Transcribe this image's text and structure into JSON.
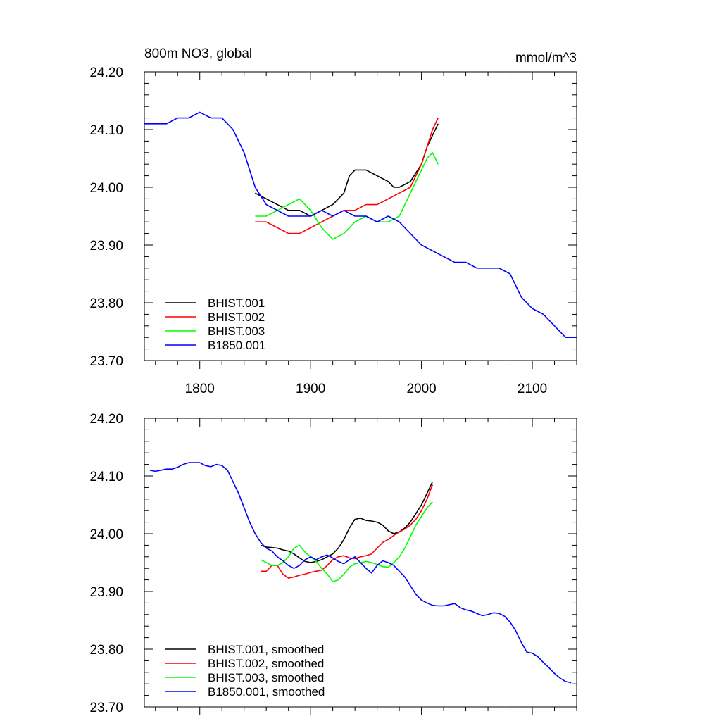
{
  "chart_data": [
    {
      "type": "line",
      "title": "800m NO3, global",
      "units": "mmol/m^3",
      "xlim": [
        1750,
        2140
      ],
      "ylim": [
        23.7,
        24.2
      ],
      "xticks": [
        1800,
        1900,
        2000,
        2100
      ],
      "xtick_labels": [
        "1800",
        "1900",
        "2000",
        "2100"
      ],
      "yticks": [
        23.7,
        23.8,
        23.9,
        24.0,
        24.1,
        24.2
      ],
      "ytick_labels": [
        "23.70",
        "23.80",
        "23.90",
        "24.00",
        "24.10",
        "24.20"
      ],
      "legend_position": "bottom-left",
      "grid": false,
      "series": [
        {
          "name": "BHIST.001",
          "color": "#000000",
          "x": [
            1850,
            1860,
            1870,
            1880,
            1890,
            1900,
            1910,
            1920,
            1930,
            1935,
            1940,
            1950,
            1960,
            1970,
            1975,
            1980,
            1990,
            2000,
            2005,
            2010,
            2015
          ],
          "y": [
            23.99,
            23.98,
            23.97,
            23.96,
            23.96,
            23.95,
            23.96,
            23.97,
            23.99,
            24.02,
            24.03,
            24.03,
            24.02,
            24.01,
            24.0,
            24.0,
            24.01,
            24.04,
            24.07,
            24.09,
            24.11
          ]
        },
        {
          "name": "BHIST.002",
          "color": "#ff0000",
          "x": [
            1850,
            1860,
            1870,
            1880,
            1890,
            1900,
            1910,
            1920,
            1930,
            1940,
            1950,
            1960,
            1970,
            1980,
            1990,
            2000,
            2005,
            2010,
            2015
          ],
          "y": [
            23.94,
            23.94,
            23.93,
            23.92,
            23.92,
            23.93,
            23.94,
            23.95,
            23.96,
            23.96,
            23.97,
            23.97,
            23.98,
            23.99,
            24.0,
            24.04,
            24.07,
            24.1,
            24.12
          ]
        },
        {
          "name": "BHIST.003",
          "color": "#00ff00",
          "x": [
            1850,
            1860,
            1870,
            1880,
            1890,
            1900,
            1910,
            1920,
            1930,
            1940,
            1950,
            1960,
            1970,
            1980,
            1990,
            2000,
            2005,
            2010,
            2015
          ],
          "y": [
            23.95,
            23.95,
            23.96,
            23.97,
            23.98,
            23.96,
            23.93,
            23.91,
            23.92,
            23.94,
            23.95,
            23.94,
            23.94,
            23.95,
            23.99,
            24.03,
            24.05,
            24.06,
            24.04
          ]
        },
        {
          "name": "B1850.001",
          "color": "#0000ff",
          "x": [
            1750,
            1760,
            1770,
            1780,
            1790,
            1800,
            1810,
            1820,
            1830,
            1840,
            1850,
            1860,
            1870,
            1880,
            1890,
            1900,
            1910,
            1920,
            1930,
            1940,
            1950,
            1960,
            1970,
            1980,
            1990,
            2000,
            2010,
            2020,
            2030,
            2040,
            2050,
            2060,
            2070,
            2080,
            2090,
            2100,
            2110,
            2120,
            2130,
            2140
          ],
          "y": [
            24.11,
            24.11,
            24.11,
            24.12,
            24.12,
            24.13,
            24.12,
            24.12,
            24.1,
            24.06,
            24.0,
            23.97,
            23.96,
            23.95,
            23.95,
            23.95,
            23.96,
            23.95,
            23.96,
            23.95,
            23.95,
            23.94,
            23.95,
            23.94,
            23.92,
            23.9,
            23.89,
            23.88,
            23.87,
            23.87,
            23.86,
            23.86,
            23.86,
            23.85,
            23.81,
            23.79,
            23.78,
            23.76,
            23.74,
            23.74
          ]
        }
      ]
    },
    {
      "type": "line",
      "xlim": [
        1750,
        2140
      ],
      "ylim": [
        23.7,
        24.2
      ],
      "xticks": [
        1800,
        1900,
        2000,
        2100
      ],
      "yticks": [
        23.7,
        23.8,
        23.9,
        24.0,
        24.1,
        24.2
      ],
      "ytick_labels": [
        "23.70",
        "23.80",
        "23.90",
        "24.00",
        "24.10",
        "24.20"
      ],
      "legend_position": "bottom-left",
      "grid": false,
      "series": [
        {
          "name": "BHIST.001, smoothed",
          "color": "#000000",
          "x": [
            1855,
            1860,
            1865,
            1870,
            1875,
            1880,
            1885,
            1890,
            1895,
            1900,
            1905,
            1910,
            1915,
            1920,
            1925,
            1930,
            1935,
            1940,
            1945,
            1950,
            1955,
            1960,
            1965,
            1970,
            1975,
            1980,
            1985,
            1990,
            1995,
            2000,
            2005,
            2010
          ],
          "y": [
            23.98,
            23.977,
            23.976,
            23.975,
            23.972,
            23.97,
            23.965,
            23.958,
            23.952,
            23.95,
            23.952,
            23.955,
            23.96,
            23.965,
            23.975,
            23.99,
            24.01,
            24.025,
            24.027,
            24.023,
            24.022,
            24.02,
            24.015,
            24.005,
            24.0,
            24.003,
            24.01,
            24.02,
            24.035,
            24.05,
            24.07,
            24.09
          ]
        },
        {
          "name": "BHIST.002, smoothed",
          "color": "#ff0000",
          "x": [
            1855,
            1860,
            1865,
            1870,
            1875,
            1880,
            1885,
            1890,
            1895,
            1900,
            1905,
            1910,
            1915,
            1920,
            1925,
            1930,
            1935,
            1940,
            1945,
            1950,
            1955,
            1960,
            1965,
            1970,
            1975,
            1980,
            1985,
            1990,
            1995,
            2000,
            2005,
            2010
          ],
          "y": [
            23.935,
            23.935,
            23.945,
            23.945,
            23.93,
            23.923,
            23.925,
            23.928,
            23.93,
            23.933,
            23.935,
            23.937,
            23.945,
            23.955,
            23.96,
            23.962,
            23.958,
            23.957,
            23.96,
            23.962,
            23.965,
            23.975,
            23.985,
            23.99,
            23.997,
            24.003,
            24.008,
            24.015,
            24.025,
            24.04,
            24.06,
            24.085
          ]
        },
        {
          "name": "BHIST.003, smoothed",
          "color": "#00ff00",
          "x": [
            1855,
            1860,
            1865,
            1870,
            1875,
            1880,
            1885,
            1890,
            1895,
            1900,
            1905,
            1910,
            1915,
            1920,
            1925,
            1930,
            1935,
            1940,
            1945,
            1950,
            1955,
            1960,
            1965,
            1970,
            1975,
            1980,
            1985,
            1990,
            1995,
            2000,
            2005,
            2010
          ],
          "y": [
            23.955,
            23.95,
            23.945,
            23.945,
            23.95,
            23.96,
            23.975,
            23.98,
            23.968,
            23.96,
            23.952,
            23.94,
            23.93,
            23.917,
            23.92,
            23.93,
            23.942,
            23.948,
            23.95,
            23.952,
            23.95,
            23.947,
            23.943,
            23.942,
            23.95,
            23.96,
            23.975,
            23.995,
            24.015,
            24.03,
            24.045,
            24.055
          ]
        },
        {
          "name": "B1850.001, smoothed",
          "color": "#0000ff",
          "x": [
            1755,
            1760,
            1765,
            1770,
            1775,
            1780,
            1785,
            1790,
            1795,
            1800,
            1805,
            1810,
            1815,
            1820,
            1825,
            1830,
            1835,
            1840,
            1845,
            1850,
            1855,
            1860,
            1865,
            1870,
            1875,
            1880,
            1885,
            1890,
            1895,
            1900,
            1905,
            1910,
            1915,
            1920,
            1925,
            1930,
            1935,
            1940,
            1945,
            1950,
            1955,
            1960,
            1965,
            1970,
            1975,
            1980,
            1985,
            1990,
            1995,
            2000,
            2005,
            2010,
            2015,
            2020,
            2025,
            2030,
            2035,
            2040,
            2045,
            2050,
            2055,
            2060,
            2065,
            2070,
            2075,
            2080,
            2085,
            2090,
            2095,
            2100,
            2105,
            2110,
            2115,
            2120,
            2125,
            2130,
            2135
          ],
          "y": [
            24.11,
            24.108,
            24.11,
            24.112,
            24.112,
            24.115,
            24.12,
            24.123,
            24.123,
            24.123,
            24.118,
            24.116,
            24.12,
            24.118,
            24.11,
            24.09,
            24.07,
            24.045,
            24.02,
            24.0,
            23.985,
            23.975,
            23.97,
            23.96,
            23.953,
            23.945,
            23.94,
            23.945,
            23.955,
            23.96,
            23.955,
            23.96,
            23.963,
            23.958,
            23.952,
            23.948,
            23.955,
            23.96,
            23.95,
            23.94,
            23.932,
            23.945,
            23.953,
            23.95,
            23.945,
            23.935,
            23.925,
            23.91,
            23.895,
            23.885,
            23.88,
            23.876,
            23.875,
            23.875,
            23.877,
            23.879,
            23.872,
            23.868,
            23.866,
            23.862,
            23.858,
            23.86,
            23.863,
            23.862,
            23.857,
            23.847,
            23.832,
            23.812,
            23.795,
            23.793,
            23.787,
            23.777,
            23.768,
            23.758,
            23.75,
            23.744,
            23.742
          ]
        }
      ]
    }
  ]
}
